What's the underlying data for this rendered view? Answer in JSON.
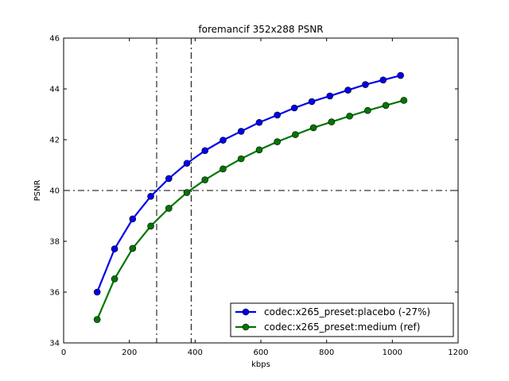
{
  "chart_data": {
    "type": "line",
    "title": "foremancif 352x288 PSNR",
    "xlabel": "kbps",
    "ylabel": "PSNR",
    "xlim": [
      0,
      1200
    ],
    "ylim": [
      34,
      46
    ],
    "xticks": [
      0,
      200,
      400,
      600,
      800,
      1000,
      1200
    ],
    "yticks": [
      34,
      36,
      38,
      40,
      42,
      44,
      46
    ],
    "grid": false,
    "legend_position": "lower-right",
    "reference_lines": {
      "horizontal_y": 40,
      "vertical_x": [
        283,
        388
      ]
    },
    "series": [
      {
        "name": "codec:x265_preset:placebo (-27%)",
        "color": "#0000ee",
        "x": [
          102,
          155,
          210,
          265,
          320,
          375,
          430,
          485,
          540,
          595,
          650,
          702,
          755,
          810,
          865,
          918,
          972,
          1025
        ],
        "y": [
          36.0,
          37.7,
          38.88,
          39.77,
          40.47,
          41.07,
          41.57,
          41.98,
          42.33,
          42.68,
          42.97,
          43.25,
          43.5,
          43.72,
          43.95,
          44.17,
          44.35,
          44.53
        ]
      },
      {
        "name": "codec:x265_preset:medium (ref)",
        "color": "#007700",
        "x": [
          102,
          155,
          210,
          265,
          320,
          375,
          430,
          485,
          540,
          595,
          650,
          705,
          760,
          815,
          870,
          925,
          980,
          1035
        ],
        "y": [
          34.92,
          36.52,
          37.72,
          38.6,
          39.3,
          39.92,
          40.42,
          40.85,
          41.25,
          41.6,
          41.92,
          42.2,
          42.47,
          42.7,
          42.93,
          43.15,
          43.35,
          43.55
        ]
      }
    ]
  }
}
